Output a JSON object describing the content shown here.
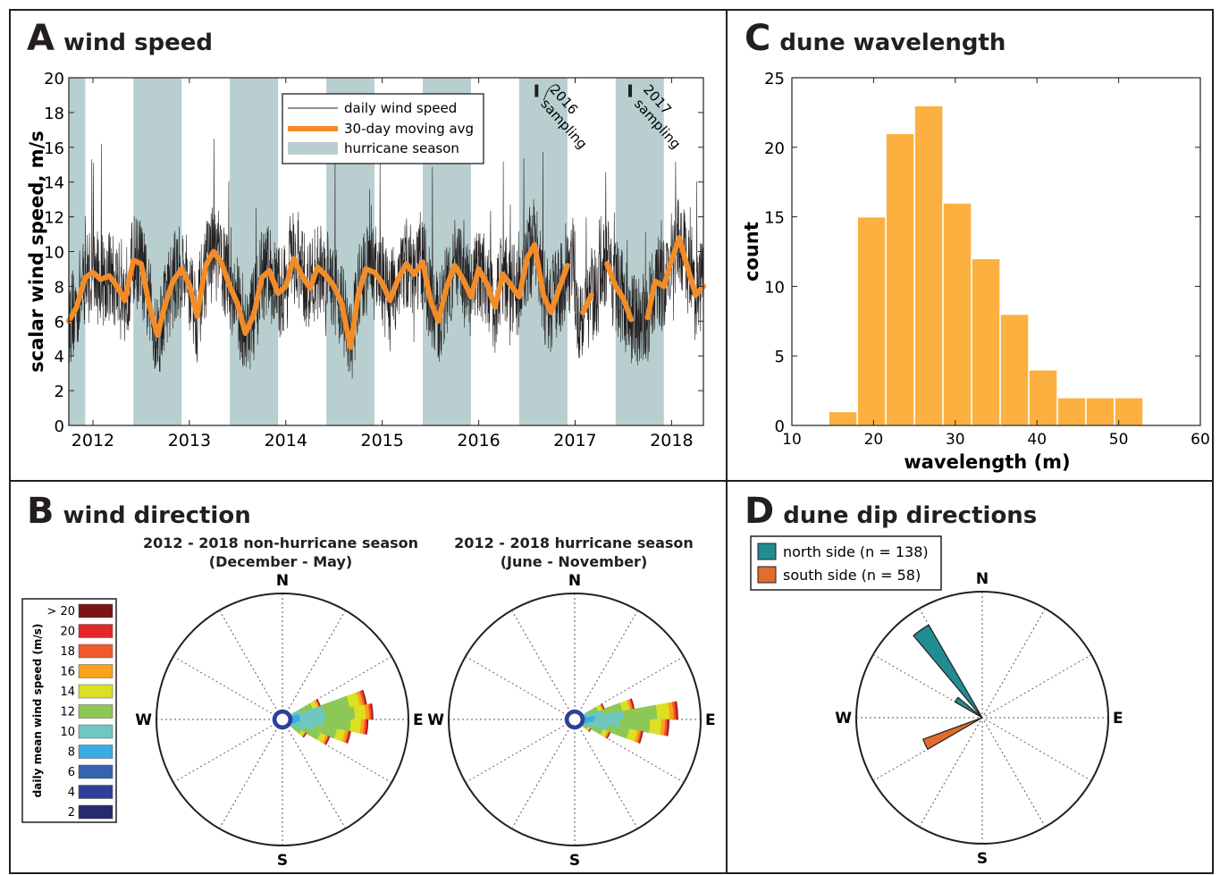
{
  "panels": {
    "A": {
      "letter": "A",
      "title": "wind speed"
    },
    "B": {
      "letter": "B",
      "title": "wind direction"
    },
    "C": {
      "letter": "C",
      "title": "dune wavelength"
    },
    "D": {
      "letter": "D",
      "title": "dune dip directions"
    }
  },
  "roses": {
    "left_title": [
      "2012 - 2018 non-hurricane season",
      "(December - May)"
    ],
    "right_title": [
      "2012 - 2018 hurricane season",
      "(June - November)"
    ],
    "compass": {
      "n": "N",
      "e": "E",
      "s": "S",
      "w": "W"
    },
    "legend_title": "daily mean wind speed (m/s)",
    "speed_bins": [
      {
        "label": "> 20",
        "color": "#7b1416"
      },
      {
        "label": "20",
        "color": "#e3262a"
      },
      {
        "label": "18",
        "color": "#f15a2b"
      },
      {
        "label": "16",
        "color": "#f9a21c"
      },
      {
        "label": "14",
        "color": "#dce025"
      },
      {
        "label": "12",
        "color": "#8dc756"
      },
      {
        "label": "10",
        "color": "#6fc7be"
      },
      {
        "label": "8",
        "color": "#39ace2"
      },
      {
        "label": "6",
        "color": "#3463af"
      },
      {
        "label": "4",
        "color": "#2f3f98"
      },
      {
        "label": "2",
        "color": "#272a6c"
      }
    ]
  },
  "dune_legend": [
    {
      "label": "north side (n = 138)",
      "color": "#1f8d91"
    },
    {
      "label": "south side (n = 58)",
      "color": "#e06d2b"
    }
  ],
  "colors": {
    "hurricane_band": "#b9cfcf",
    "moving_avg": "#f28c28",
    "histogram": "#fbb040",
    "axis": "#231f20"
  },
  "chart_data": [
    {
      "type": "line",
      "panel": "A",
      "ylabel": "scalar wind speed, m/s",
      "xlabel": "",
      "xlim": [
        2011.75,
        2018.33
      ],
      "ylim": [
        0,
        20
      ],
      "yticks": [
        0,
        2,
        4,
        6,
        8,
        10,
        12,
        14,
        16,
        18,
        20
      ],
      "xticks": [
        2012,
        2013,
        2014,
        2015,
        2016,
        2017,
        2018
      ],
      "xtick_labels": [
        "2012",
        "2013",
        "2014",
        "2015",
        "2016",
        "2017",
        "2018"
      ],
      "legend": [
        "daily wind speed",
        "30-day moving avg",
        "hurricane season"
      ],
      "legend_position": "top-center",
      "hurricane_seasons": [
        [
          2011.75,
          2011.92
        ],
        [
          2012.42,
          2012.92
        ],
        [
          2013.42,
          2013.92
        ],
        [
          2014.42,
          2014.92
        ],
        [
          2015.42,
          2015.92
        ],
        [
          2016.42,
          2016.92
        ],
        [
          2017.42,
          2017.92
        ]
      ],
      "annotations": [
        {
          "text": "2016 sampling",
          "x": 2016.6,
          "y": 19.2
        },
        {
          "text": "2017 sampling",
          "x": 2017.57,
          "y": 19.2
        }
      ],
      "series": [
        {
          "name": "30-day moving avg",
          "x": [
            2011.75,
            2011.83,
            2011.92,
            2012.0,
            2012.08,
            2012.17,
            2012.25,
            2012.33,
            2012.42,
            2012.5,
            2012.58,
            2012.67,
            2012.75,
            2012.83,
            2012.92,
            2013.0,
            2013.08,
            2013.17,
            2013.25,
            2013.33,
            2013.42,
            2013.5,
            2013.58,
            2013.67,
            2013.75,
            2013.83,
            2013.92,
            2014.0,
            2014.08,
            2014.17,
            2014.25,
            2014.33,
            2014.42,
            2014.5,
            2014.58,
            2014.67,
            2014.75,
            2014.83,
            2014.92,
            2015.0,
            2015.08,
            2015.17,
            2015.25,
            2015.33,
            2015.42,
            2015.5,
            2015.58,
            2015.67,
            2015.75,
            2015.83,
            2015.92,
            2016.0,
            2016.08,
            2016.17,
            2016.25,
            2016.33,
            2016.42,
            2016.5,
            2016.58,
            2016.67,
            2016.75,
            2016.83,
            2016.92,
            2017.0,
            2017.08,
            2017.17,
            2017.25,
            2017.33,
            2017.42,
            2017.5,
            2017.58,
            2017.67,
            2017.75,
            2017.83,
            2017.92,
            2018.0,
            2018.08,
            2018.17,
            2018.25,
            2018.33
          ],
          "values": [
            6.0,
            6.8,
            8.5,
            8.8,
            8.4,
            8.6,
            8.0,
            7.2,
            9.5,
            9.3,
            7.0,
            5.2,
            7.0,
            8.3,
            9.0,
            8.1,
            6.3,
            9.2,
            10.0,
            9.4,
            8.0,
            7.0,
            5.3,
            6.4,
            8.5,
            8.9,
            7.6,
            8.0,
            9.6,
            8.6,
            7.9,
            9.1,
            8.6,
            8.0,
            7.0,
            4.5,
            7.5,
            9.0,
            8.8,
            8.2,
            7.2,
            8.5,
            9.3,
            8.7,
            9.4,
            7.2,
            6.0,
            8.0,
            9.2,
            8.5,
            7.4,
            9.0,
            8.2,
            6.8,
            8.7,
            8.1,
            7.4,
            9.6,
            10.4,
            7.5,
            6.5,
            7.8,
            9.2,
            null,
            6.5,
            7.5,
            null,
            9.3,
            8.0,
            7.3,
            6.1,
            null,
            6.2,
            8.3,
            8.0,
            9.5,
            10.8,
            9.0,
            7.5,
            8.0
          ]
        }
      ]
    },
    {
      "type": "bar",
      "panel": "C",
      "xlabel": "wavelength (m)",
      "ylabel": "count",
      "xlim": [
        10,
        60
      ],
      "ylim": [
        0,
        25
      ],
      "xticks": [
        10,
        20,
        30,
        40,
        50,
        60
      ],
      "yticks": [
        0,
        5,
        10,
        15,
        20,
        25
      ],
      "bin_edges": [
        14.5,
        18,
        21.5,
        25,
        28.5,
        32,
        35.5,
        39,
        42.5,
        46,
        49.5,
        53
      ],
      "values": [
        1,
        15,
        21,
        23,
        16,
        12,
        8,
        4,
        2,
        2,
        2
      ]
    },
    {
      "type": "rose",
      "panel": "B-left",
      "petals": [
        {
          "dir": 75,
          "r": 0.68
        },
        {
          "dir": 85,
          "r": 0.72
        },
        {
          "dir": 95,
          "r": 0.68
        },
        {
          "dir": 105,
          "r": 0.55
        },
        {
          "dir": 115,
          "r": 0.4
        },
        {
          "dir": 65,
          "r": 0.32
        },
        {
          "dir": 125,
          "r": 0.22
        }
      ]
    },
    {
      "type": "rose",
      "panel": "B-right",
      "petals": [
        {
          "dir": 75,
          "r": 0.48
        },
        {
          "dir": 85,
          "r": 0.82
        },
        {
          "dir": 95,
          "r": 0.75
        },
        {
          "dir": 105,
          "r": 0.55
        },
        {
          "dir": 115,
          "r": 0.3
        },
        {
          "dir": 65,
          "r": 0.25
        },
        {
          "dir": 125,
          "r": 0.15
        }
      ]
    },
    {
      "type": "rose",
      "panel": "D",
      "series": [
        {
          "name": "north side (n = 138)",
          "petals": [
            {
              "dir": 325,
              "r": 0.85
            },
            {
              "dir": 305,
              "r": 0.25
            }
          ]
        },
        {
          "name": "south side (n = 58)",
          "petals": [
            {
              "dir": 245,
              "r": 0.5
            }
          ]
        }
      ]
    }
  ]
}
